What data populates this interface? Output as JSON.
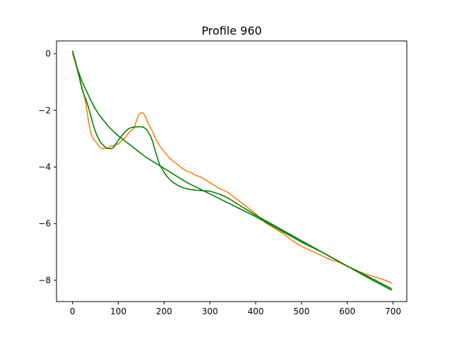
{
  "chart_data": {
    "type": "line",
    "title": "Profile 960",
    "xlabel": "",
    "ylabel": "",
    "xlim": [
      -35,
      730
    ],
    "ylim": [
      -8.75,
      0.45
    ],
    "grid": false,
    "legend": "none",
    "xticks": [
      0,
      100,
      200,
      300,
      400,
      500,
      600,
      700
    ],
    "yticks": [
      0,
      -2,
      -4,
      -6,
      -8
    ],
    "xtick_labels": [
      "0",
      "100",
      "200",
      "300",
      "400",
      "500",
      "600",
      "700"
    ],
    "ytick_labels": [
      "0",
      "−2",
      "−4",
      "−6",
      "−8"
    ],
    "series": [
      {
        "color": "#ff7f0e",
        "x": [
          0,
          5,
          10,
          15,
          20,
          25,
          30,
          35,
          40,
          45,
          50,
          55,
          60,
          65,
          70,
          75,
          80,
          85,
          90,
          95,
          100,
          105,
          110,
          115,
          120,
          125,
          130,
          135,
          140,
          145,
          150,
          155,
          160,
          165,
          170,
          175,
          180,
          185,
          190,
          200,
          210,
          220,
          230,
          240,
          250,
          260,
          270,
          280,
          290,
          300,
          320,
          340,
          360,
          380,
          400,
          420,
          440,
          460,
          480,
          500,
          520,
          540,
          560,
          580,
          600,
          620,
          640,
          660,
          680,
          690,
          697
        ],
        "y": [
          0.0,
          -0.25,
          -0.55,
          -0.85,
          -1.15,
          -1.45,
          -1.85,
          -2.4,
          -2.8,
          -3.0,
          -3.1,
          -3.2,
          -3.3,
          -3.35,
          -3.35,
          -3.35,
          -3.3,
          -3.25,
          -3.25,
          -3.18,
          -3.2,
          -3.1,
          -3.05,
          -2.95,
          -2.85,
          -2.75,
          -2.7,
          -2.6,
          -2.35,
          -2.15,
          -2.08,
          -2.1,
          -2.25,
          -2.45,
          -2.6,
          -2.75,
          -2.95,
          -3.1,
          -3.25,
          -3.45,
          -3.65,
          -3.8,
          -3.92,
          -4.05,
          -4.15,
          -4.2,
          -4.3,
          -4.35,
          -4.45,
          -4.55,
          -4.75,
          -4.9,
          -5.15,
          -5.4,
          -5.65,
          -5.95,
          -6.15,
          -6.35,
          -6.6,
          -6.8,
          -6.95,
          -7.1,
          -7.25,
          -7.35,
          -7.5,
          -7.65,
          -7.78,
          -7.88,
          -7.98,
          -8.05,
          -8.1
        ]
      },
      {
        "color": "#008000",
        "x": [
          0,
          5,
          10,
          15,
          20,
          25,
          30,
          35,
          40,
          45,
          50,
          55,
          60,
          65,
          70,
          75,
          80,
          85,
          90,
          95,
          100,
          105,
          110,
          115,
          120,
          125,
          130,
          135,
          140,
          145,
          150,
          155,
          160,
          165,
          170,
          175,
          180,
          185,
          190,
          195,
          200,
          210,
          220,
          230,
          240,
          250,
          260,
          270,
          280,
          290,
          300,
          320,
          340,
          360,
          380,
          400,
          450,
          500,
          550,
          600,
          650,
          697
        ],
        "y": [
          0.1,
          -0.2,
          -0.5,
          -0.85,
          -1.2,
          -1.45,
          -1.65,
          -1.9,
          -2.2,
          -2.5,
          -2.75,
          -2.95,
          -3.1,
          -3.2,
          -3.28,
          -3.33,
          -3.35,
          -3.35,
          -3.3,
          -3.2,
          -3.05,
          -2.95,
          -2.85,
          -2.75,
          -2.68,
          -2.63,
          -2.6,
          -2.59,
          -2.58,
          -2.58,
          -2.58,
          -2.6,
          -2.65,
          -2.75,
          -2.9,
          -3.1,
          -3.4,
          -3.65,
          -3.9,
          -4.05,
          -4.2,
          -4.4,
          -4.55,
          -4.65,
          -4.72,
          -4.77,
          -4.8,
          -4.82,
          -4.83,
          -4.84,
          -4.85,
          -4.95,
          -5.1,
          -5.3,
          -5.5,
          -5.7,
          -6.15,
          -6.6,
          -7.05,
          -7.5,
          -7.9,
          -8.3
        ]
      },
      {
        "color": "#008000",
        "x": [
          0,
          10,
          20,
          30,
          40,
          50,
          60,
          70,
          80,
          90,
          100,
          120,
          140,
          160,
          180,
          200,
          250,
          300,
          350,
          400,
          450,
          500,
          550,
          600,
          650,
          697
        ],
        "y": [
          0.1,
          -0.5,
          -0.95,
          -1.3,
          -1.65,
          -1.95,
          -2.2,
          -2.4,
          -2.6,
          -2.75,
          -2.9,
          -3.15,
          -3.4,
          -3.65,
          -3.85,
          -4.05,
          -4.55,
          -4.95,
          -5.35,
          -5.75,
          -6.2,
          -6.65,
          -7.05,
          -7.5,
          -7.95,
          -8.35
        ]
      }
    ]
  }
}
